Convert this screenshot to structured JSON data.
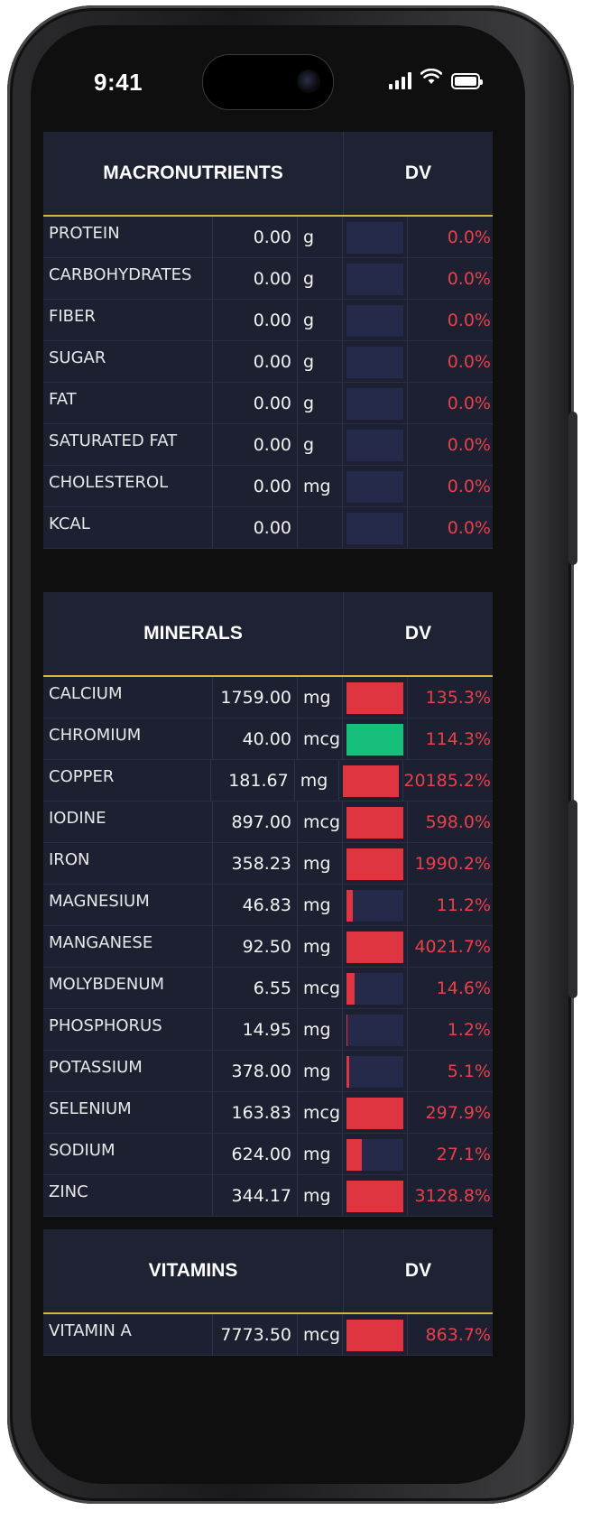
{
  "status": {
    "time": "9:41"
  },
  "colors": {
    "over": "#df3540",
    "ok": "#16c07a",
    "pct": "#e8404a",
    "accent": "#d6b93a"
  },
  "macros": {
    "title": "MACRONUTRIENTS",
    "dv_label": "DV",
    "rows": [
      {
        "name": "PROTEIN",
        "value": "0.00",
        "unit": "g",
        "pct": "0.0%",
        "fill": 0,
        "status": "none"
      },
      {
        "name": "CARBOHYDRATES",
        "value": "0.00",
        "unit": "g",
        "pct": "0.0%",
        "fill": 0,
        "status": "none"
      },
      {
        "name": "FIBER",
        "value": "0.00",
        "unit": "g",
        "pct": "0.0%",
        "fill": 0,
        "status": "none"
      },
      {
        "name": "SUGAR",
        "value": "0.00",
        "unit": "g",
        "pct": "0.0%",
        "fill": 0,
        "status": "none"
      },
      {
        "name": "FAT",
        "value": "0.00",
        "unit": "g",
        "pct": "0.0%",
        "fill": 0,
        "status": "none"
      },
      {
        "name": "SATURATED FAT",
        "value": "0.00",
        "unit": "g",
        "pct": "0.0%",
        "fill": 0,
        "status": "none"
      },
      {
        "name": "CHOLESTEROL",
        "value": "0.00",
        "unit": "mg",
        "pct": "0.0%",
        "fill": 0,
        "status": "none"
      },
      {
        "name": "KCAL",
        "value": "0.00",
        "unit": "",
        "pct": "0.0%",
        "fill": 0,
        "status": "none"
      }
    ]
  },
  "minerals": {
    "title": "MINERALS",
    "dv_label": "DV",
    "rows": [
      {
        "name": "CALCIUM",
        "value": "1759.00",
        "unit": "mg",
        "pct": "135.3%",
        "fill": 1,
        "status": "over"
      },
      {
        "name": "CHROMIUM",
        "value": "40.00",
        "unit": "mcg",
        "pct": "114.3%",
        "fill": 1,
        "status": "ok"
      },
      {
        "name": "COPPER",
        "value": "181.67",
        "unit": "mg",
        "pct": "20185.2%",
        "fill": 1,
        "status": "over"
      },
      {
        "name": "IODINE",
        "value": "897.00",
        "unit": "mcg",
        "pct": "598.0%",
        "fill": 1,
        "status": "over"
      },
      {
        "name": "IRON",
        "value": "358.23",
        "unit": "mg",
        "pct": "1990.2%",
        "fill": 1,
        "status": "over"
      },
      {
        "name": "MAGNESIUM",
        "value": "46.83",
        "unit": "mg",
        "pct": "11.2%",
        "fill": 0.112,
        "status": "over"
      },
      {
        "name": "MANGANESE",
        "value": "92.50",
        "unit": "mg",
        "pct": "4021.7%",
        "fill": 1,
        "status": "over"
      },
      {
        "name": "MOLYBDENUM",
        "value": "6.55",
        "unit": "mcg",
        "pct": "14.6%",
        "fill": 0.146,
        "status": "over"
      },
      {
        "name": "PHOSPHORUS",
        "value": "14.95",
        "unit": "mg",
        "pct": "1.2%",
        "fill": 0.012,
        "status": "over"
      },
      {
        "name": "POTASSIUM",
        "value": "378.00",
        "unit": "mg",
        "pct": "5.1%",
        "fill": 0.051,
        "status": "over"
      },
      {
        "name": "SELENIUM",
        "value": "163.83",
        "unit": "mcg",
        "pct": "297.9%",
        "fill": 1,
        "status": "over"
      },
      {
        "name": "SODIUM",
        "value": "624.00",
        "unit": "mg",
        "pct": "27.1%",
        "fill": 0.271,
        "status": "over"
      },
      {
        "name": "ZINC",
        "value": "344.17",
        "unit": "mg",
        "pct": "3128.8%",
        "fill": 1,
        "status": "over"
      }
    ]
  },
  "vitamins": {
    "title": "VITAMINS",
    "dv_label": "DV",
    "rows": [
      {
        "name": "VITAMIN A",
        "value": "7773.50",
        "unit": "mcg",
        "pct": "863.7%",
        "fill": 1,
        "status": "over"
      }
    ]
  }
}
